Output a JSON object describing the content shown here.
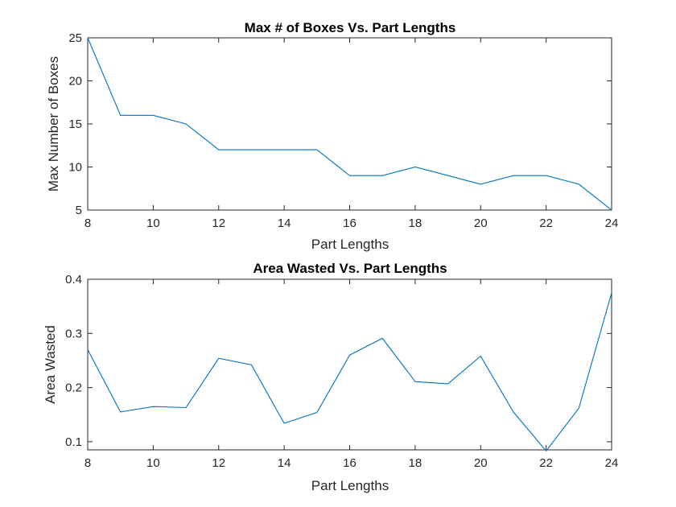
{
  "colors": {
    "line": "#0072BD",
    "axis": "#262626"
  },
  "chart_data": [
    {
      "type": "line",
      "title": "Max # of Boxes Vs. Part Lengths",
      "xlabel": "Part Lengths",
      "ylabel": "Max Number of Boxes",
      "xlim": [
        8,
        24
      ],
      "ylim": [
        5,
        25
      ],
      "xticks": [
        8,
        10,
        12,
        14,
        16,
        18,
        20,
        22,
        24
      ],
      "yticks": [
        5,
        10,
        15,
        20,
        25
      ],
      "grid": false,
      "x": [
        8,
        9,
        10,
        11,
        12,
        13,
        14,
        15,
        16,
        17,
        18,
        19,
        20,
        21,
        22,
        23,
        24
      ],
      "series": [
        {
          "values": [
            25,
            16,
            16,
            15,
            12,
            12,
            12,
            12,
            9,
            9,
            10,
            9,
            8,
            9,
            9,
            8,
            5
          ]
        }
      ]
    },
    {
      "type": "line",
      "title": "Area Wasted Vs. Part Lengths",
      "xlabel": "Part Lengths",
      "ylabel": "Area Wasted",
      "xlim": [
        8,
        24
      ],
      "ylim": [
        0.085,
        0.4
      ],
      "xticks": [
        8,
        10,
        12,
        14,
        16,
        18,
        20,
        22,
        24
      ],
      "yticks": [
        0.1,
        0.2,
        0.3,
        0.4
      ],
      "grid": false,
      "x": [
        8,
        9,
        10,
        11,
        12,
        13,
        14,
        15,
        16,
        17,
        18,
        19,
        20,
        21,
        22,
        23,
        24
      ],
      "series": [
        {
          "values": [
            0.27,
            0.155,
            0.165,
            0.163,
            0.254,
            0.242,
            0.134,
            0.154,
            0.26,
            0.291,
            0.211,
            0.207,
            0.258,
            0.155,
            0.083,
            0.162,
            0.375
          ]
        }
      ]
    }
  ]
}
